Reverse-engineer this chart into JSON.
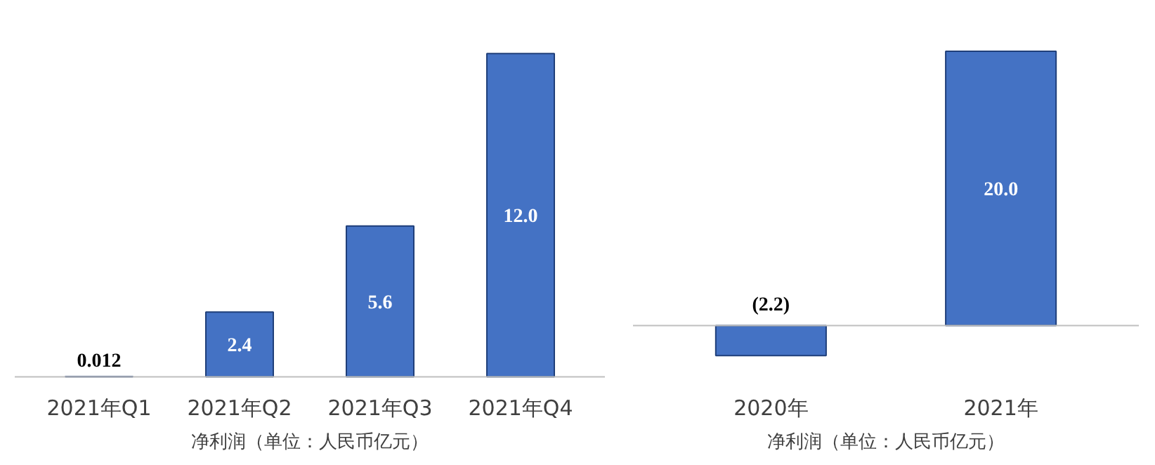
{
  "chart_data": [
    {
      "type": "bar",
      "categories": [
        "2021年Q1",
        "2021年Q2",
        "2021年Q3",
        "2021年Q4"
      ],
      "values": [
        0.012,
        2.4,
        5.6,
        12.0
      ],
      "value_labels": [
        "0.012",
        "2.4",
        "5.6",
        "12.0"
      ],
      "color": "#4472c4",
      "xlabel": "净利润（单位：人民币亿元）",
      "grid": false
    },
    {
      "type": "bar",
      "categories": [
        "2020年",
        "2021年"
      ],
      "values": [
        -2.2,
        20.0
      ],
      "value_labels": [
        "(2.2)",
        "20.0"
      ],
      "color": "#4472c4",
      "xlabel": "净利润（单位：人民币亿元）",
      "grid": false
    }
  ]
}
